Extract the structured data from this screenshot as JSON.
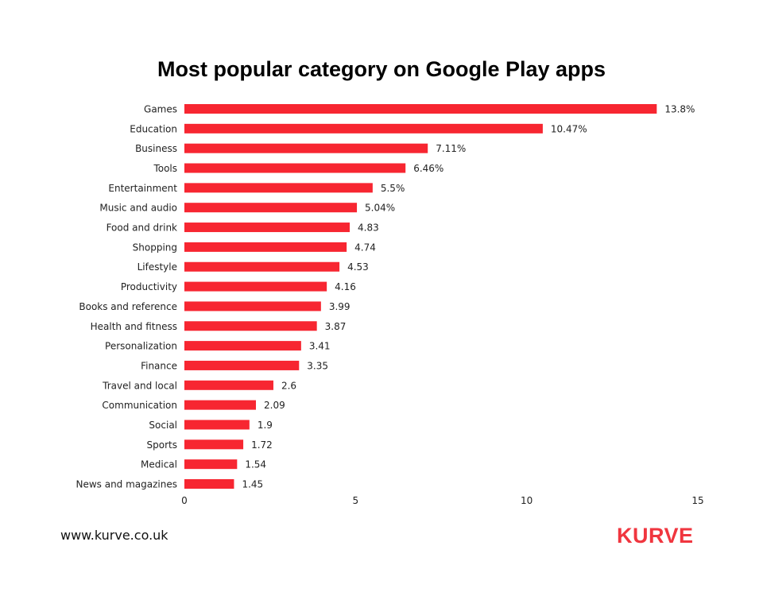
{
  "chart_data": {
    "type": "bar",
    "orientation": "horizontal",
    "title": "Most popular category on Google Play apps",
    "categories": [
      "Games",
      "Education",
      "Business",
      "Tools",
      "Entertainment",
      "Music and audio",
      "Food and drink",
      "Shopping",
      "Lifestyle",
      "Productivity",
      "Books and reference",
      "Health and fitness",
      "Personalization",
      "Finance",
      "Travel and local",
      "Communication",
      "Social",
      "Sports",
      "Medical",
      "News and magazines"
    ],
    "values": [
      13.8,
      10.47,
      7.11,
      6.46,
      5.5,
      5.04,
      4.83,
      4.74,
      4.53,
      4.16,
      3.99,
      3.87,
      3.41,
      3.35,
      2.6,
      2.09,
      1.9,
      1.72,
      1.54,
      1.45
    ],
    "data_labels": [
      "13.8%",
      "10.47%",
      "7.11%",
      "6.46%",
      "5.5%",
      "5.04%",
      "4.83",
      "4.74",
      "4.53",
      "4.16",
      "3.99",
      "3.87",
      "3.41",
      "3.35",
      "2.6",
      "2.09",
      "1.9",
      "1.72",
      "1.54",
      "1.45"
    ],
    "xlim": [
      0,
      15
    ],
    "x_ticks": [
      "0",
      "5",
      "10",
      "15"
    ],
    "grid": false,
    "bar_color": "#f72631"
  },
  "footer": {
    "website": "www.kurve.co.uk",
    "logo": "KURVE"
  }
}
